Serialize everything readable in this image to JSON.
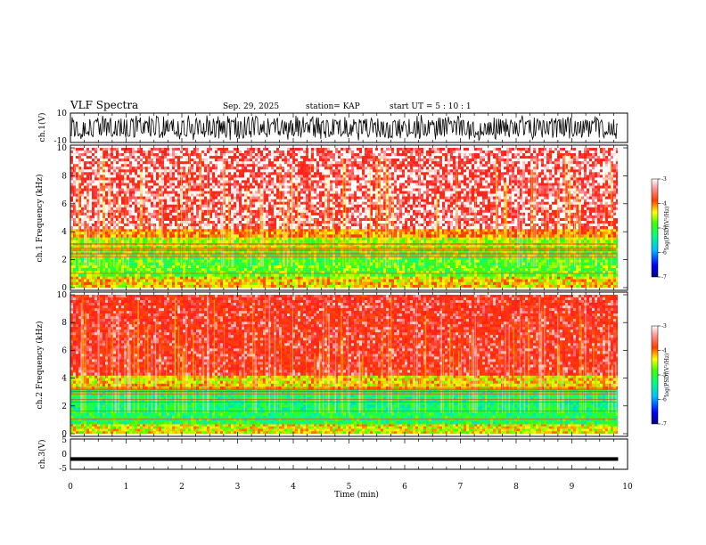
{
  "header": {
    "title": "VLF Spectra",
    "date": "Sep. 29, 2025",
    "station": "station= KAP",
    "start_ut": "start  UT =   5 : 10 : 1"
  },
  "chart_data": [
    {
      "type": "line",
      "panel": "ch1-waveform",
      "ylabel": "ch.1(V)",
      "ylim": [
        -10,
        10
      ],
      "yticks": [
        "10",
        "-10"
      ],
      "xlim": [
        0,
        10
      ],
      "note": "dense black waveform oscillating roughly between -8 and +8 V over the 0-9.8 min span"
    },
    {
      "type": "heatmap",
      "panel": "ch1-spectrogram",
      "ylabel": "ch.1 Frequency (kHz)",
      "ylim": [
        0,
        10
      ],
      "yticks": [
        "0",
        "2",
        "4",
        "6",
        "8",
        "10"
      ],
      "xlim": [
        0,
        9.8
      ],
      "bands": [
        {
          "from": 0,
          "to": 0.8,
          "level": -4.3
        },
        {
          "from": 0.8,
          "to": 1.6,
          "level": -4.8
        },
        {
          "from": 1.6,
          "to": 2.6,
          "level": -4.9
        },
        {
          "from": 2.6,
          "to": 3.6,
          "level": -4.6
        },
        {
          "from": 3.6,
          "to": 4.2,
          "level": -4.0
        },
        {
          "from": 4.2,
          "to": 10,
          "level": -3.2
        }
      ],
      "colorbar": {
        "label": "log(PSD)(V²/Hz)",
        "ticks": [
          "-3",
          "-4",
          "-5",
          "-6",
          "-7"
        ],
        "range": [
          -7,
          -3
        ]
      }
    },
    {
      "type": "heatmap",
      "panel": "ch2-spectrogram",
      "ylabel": "ch.2 Frequency (kHz)",
      "ylim": [
        0,
        10
      ],
      "yticks": [
        "0",
        "2",
        "4",
        "6",
        "8",
        "10"
      ],
      "xlim": [
        0,
        9.8
      ],
      "bands": [
        {
          "from": 0,
          "to": 0.7,
          "level": -4.4
        },
        {
          "from": 0.7,
          "to": 1.7,
          "level": -5.1
        },
        {
          "from": 1.7,
          "to": 3.2,
          "level": -5.2
        },
        {
          "from": 3.2,
          "to": 4.2,
          "level": -4.3
        },
        {
          "from": 4.2,
          "to": 10,
          "level": -3.5
        }
      ],
      "colorbar": {
        "label": "log(PSD)(V²/Hz)",
        "ticks": [
          "-3",
          "-4",
          "-5",
          "-6",
          "-7"
        ],
        "range": [
          -7,
          -3
        ]
      }
    },
    {
      "type": "line",
      "panel": "ch3-waveform",
      "ylabel": "ch.3(V)",
      "ylim": [
        -5,
        5
      ],
      "yticks": [
        "5",
        "0",
        "-5"
      ],
      "xlim": [
        0,
        10
      ],
      "note": "thick black band around -1 to -2 V across the 0-9.8 min span"
    }
  ],
  "xaxis": {
    "label": "Time  (min)",
    "ticks": [
      "0",
      "1",
      "2",
      "3",
      "4",
      "5",
      "6",
      "7",
      "8",
      "9",
      "10"
    ],
    "range": [
      0,
      10
    ]
  }
}
